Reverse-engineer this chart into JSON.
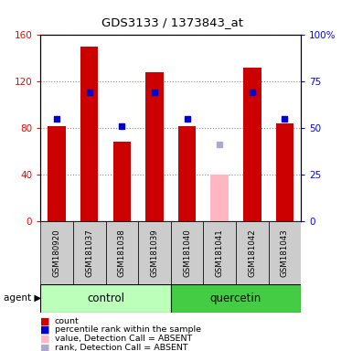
{
  "title": "GDS3133 / 1373843_at",
  "samples": [
    "GSM180920",
    "GSM181037",
    "GSM181038",
    "GSM181039",
    "GSM181040",
    "GSM181041",
    "GSM181042",
    "GSM181043"
  ],
  "group_labels": [
    "control",
    "quercetin"
  ],
  "red_bars": [
    82,
    150,
    68,
    128,
    82,
    null,
    132,
    84
  ],
  "pink_bars": [
    null,
    null,
    null,
    null,
    null,
    40,
    null,
    null
  ],
  "blue_squares": [
    55,
    69,
    51,
    69,
    55,
    null,
    69,
    55
  ],
  "lavender_squares": [
    null,
    null,
    null,
    null,
    null,
    41,
    null,
    null
  ],
  "ylim_left": [
    0,
    160
  ],
  "ylim_right": [
    0,
    100
  ],
  "yticks_left": [
    0,
    40,
    80,
    120,
    160
  ],
  "yticks_right": [
    0,
    25,
    50,
    75,
    100
  ],
  "ytick_labels_left": [
    "0",
    "40",
    "80",
    "120",
    "160"
  ],
  "ytick_labels_right": [
    "0",
    "25",
    "50",
    "75",
    "100%"
  ],
  "bar_width": 0.55,
  "red_bar_color": "#cc0000",
  "pink_bar_color": "#ffb6c1",
  "blue_sq_color": "#0000cc",
  "lavender_sq_color": "#aaaacc",
  "legend_items": [
    "count",
    "percentile rank within the sample",
    "value, Detection Call = ABSENT",
    "rank, Detection Call = ABSENT"
  ],
  "legend_colors": [
    "#cc0000",
    "#0000cc",
    "#ffb6c1",
    "#aaaacc"
  ],
  "gsm_bg_color": "#cccccc",
  "control_bg_color": "#bbffbb",
  "quercetin_bg_color": "#44cc44",
  "grid_color": "#888888",
  "agent_label": "agent"
}
